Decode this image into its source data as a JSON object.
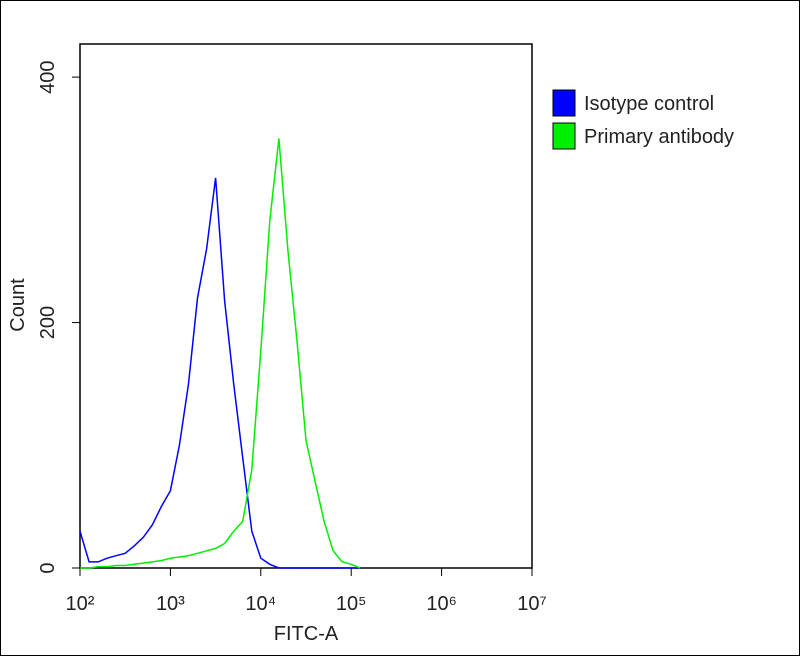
{
  "chart_data": {
    "type": "line",
    "x_label": "FITC-A",
    "y_label": "Count",
    "x_scale": "log",
    "x": [
      100,
      126,
      158,
      200,
      251,
      316,
      398,
      501,
      631,
      794,
      1000,
      1259,
      1585,
      1995,
      2512,
      3162,
      3981,
      5012,
      6310,
      7943,
      10000,
      12589,
      15849,
      19953,
      25119,
      31623,
      39811,
      50119,
      63096,
      79433,
      100000,
      125893
    ],
    "series": [
      {
        "name": "Isotype control",
        "color": "#0000ff",
        "values": [
          30,
          5,
          5,
          8,
          10,
          12,
          18,
          25,
          35,
          50,
          63,
          100,
          150,
          220,
          260,
          318,
          218,
          150,
          90,
          30,
          8,
          3,
          0,
          0,
          0,
          0,
          0,
          0,
          0,
          0,
          0,
          0
        ]
      },
      {
        "name": "Primary antibody",
        "color": "#00ee00",
        "values": [
          0,
          0,
          1,
          1,
          2,
          2,
          3,
          4,
          5,
          6,
          8,
          9,
          10,
          12,
          14,
          16,
          20,
          30,
          38,
          80,
          177,
          283,
          350,
          259,
          185,
          104,
          71,
          38,
          14,
          5,
          3,
          0
        ]
      }
    ],
    "xlim": [
      100,
      10000000
    ],
    "xticks": [
      {
        "value": 100,
        "label": "10²"
      },
      {
        "value": 1000,
        "label": "10³"
      },
      {
        "value": 10000,
        "label": "10⁴"
      },
      {
        "value": 100000,
        "label": "10⁵"
      },
      {
        "value": 1000000,
        "label": "10⁶"
      },
      {
        "value": 10000000,
        "label": "10⁷"
      }
    ],
    "ylim": [
      0,
      427
    ],
    "yticks": [
      0,
      200,
      400
    ],
    "legend": "right"
  }
}
